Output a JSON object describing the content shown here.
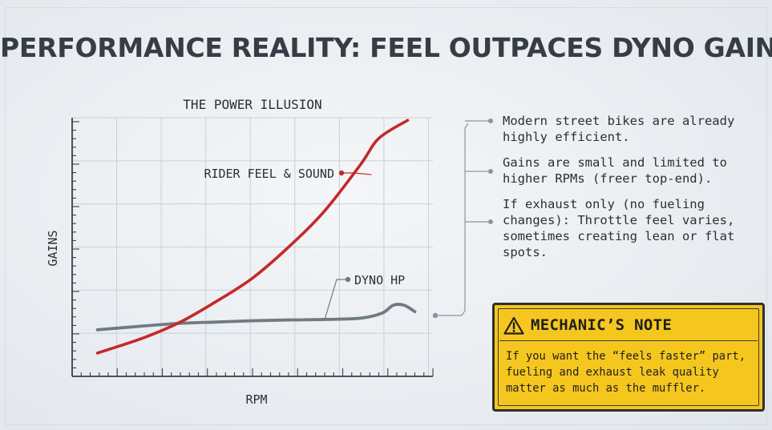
{
  "title": "PERFORMANCE REALITY: FEEL OUTPACES DYNO GAINS",
  "chart_data": {
    "type": "line",
    "title": "THE POWER ILLUSION",
    "xlabel": "RPM",
    "ylabel": "GAINS",
    "x_range": [
      0,
      1
    ],
    "y_range": [
      0,
      1
    ],
    "grid": true,
    "legend": "inline labels",
    "series": [
      {
        "name": "RIDER FEEL & SOUND",
        "color": "#c62828",
        "x": [
          0.07,
          0.2,
          0.3,
          0.4,
          0.5,
          0.6,
          0.7,
          0.8,
          0.85,
          0.93
        ],
        "y": [
          0.09,
          0.15,
          0.21,
          0.29,
          0.38,
          0.5,
          0.64,
          0.82,
          0.92,
          0.99
        ]
      },
      {
        "name": "DYNO HP",
        "color": "#6f7b82",
        "x": [
          0.07,
          0.2,
          0.3,
          0.4,
          0.5,
          0.6,
          0.7,
          0.8,
          0.86,
          0.89,
          0.92,
          0.95
        ],
        "y": [
          0.18,
          0.195,
          0.205,
          0.21,
          0.215,
          0.218,
          0.22,
          0.225,
          0.245,
          0.275,
          0.275,
          0.25
        ]
      }
    ]
  },
  "notes": [
    "Modern street bikes are already highly efficient.",
    "Gains are small and limited to higher RPMs (freer top-end).",
    "If exhaust only (no fueling changes): Throttle feel varies, sometimes creating lean or flat spots."
  ],
  "mechanic_note": {
    "icon": "warning-icon",
    "title": "MECHANIC’S NOTE",
    "body": "If you want the “feels faster” part, fueling and exhaust leak quality matter as much as the muffler."
  }
}
